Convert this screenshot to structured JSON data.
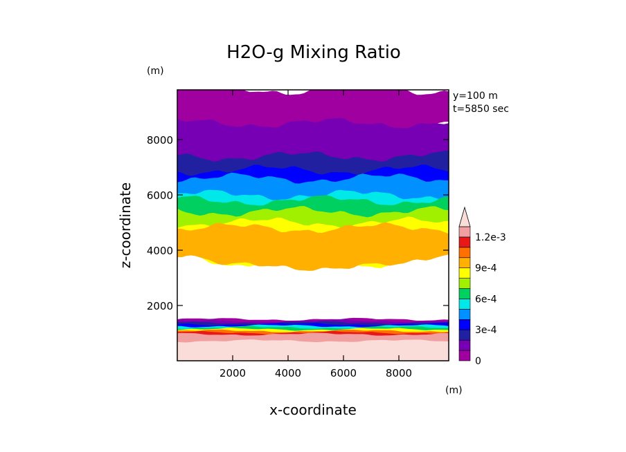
{
  "chart_data": {
    "type": "heatmap",
    "title": "H2O-g Mixing Ratio",
    "xlabel": "x-coordinate",
    "ylabel": "z-coordinate",
    "x_unit": "(m)",
    "y_unit": "(m)",
    "annotations": [
      "y=100 m",
      "t=5850 sec"
    ],
    "xlim": [
      0,
      9800
    ],
    "ylim": [
      0,
      9800
    ],
    "xticks": [
      2000,
      4000,
      6000,
      8000
    ],
    "yticks": [
      2000,
      4000,
      6000,
      8000
    ],
    "colorbar": {
      "levels": [
        0,
        0.0001,
        0.0002,
        0.0003,
        0.0004,
        0.0005,
        0.0006,
        0.0007,
        0.0008,
        0.0009,
        0.001,
        0.0011,
        0.0012
      ],
      "tick_labels": [
        "0",
        "3e-4",
        "6e-4",
        "9e-4",
        "1.2e-3"
      ],
      "tick_values": [
        0,
        0.0003,
        0.0006,
        0.0009,
        0.0012
      ],
      "extend": "max",
      "colors": [
        "#a000a0",
        "#7800b4",
        "#2020a0",
        "#0000ff",
        "#0090ff",
        "#00e8e8",
        "#00d060",
        "#a0f000",
        "#ffff00",
        "#ffb000",
        "#ff7000",
        "#e81818",
        "#f0a0a0"
      ],
      "over_color": "#fadcd8"
    },
    "layers": [
      {
        "level": 0,
        "z_bottom": 8200,
        "z_top": 9800
      },
      {
        "level": 1,
        "z_bottom": 6500,
        "z_top": 8600
      },
      {
        "level": 2,
        "z_bottom": 5800,
        "z_top": 7400
      },
      {
        "level": 3,
        "z_bottom": 5200,
        "z_top": 6900
      },
      {
        "level": 4,
        "z_bottom": 4800,
        "z_top": 6600
      },
      {
        "level": 5,
        "z_bottom": 4400,
        "z_top": 6000
      },
      {
        "level": 6,
        "z_bottom": 4200,
        "z_top": 5800
      },
      {
        "level": 7,
        "z_bottom": 3800,
        "z_top": 5400
      },
      {
        "level": 8,
        "z_bottom": 3500,
        "z_top": 5000
      },
      {
        "level": 9,
        "z_bottom": 3400,
        "z_top": 4800
      }
    ],
    "surface_layer": {
      "z_top_min": 900,
      "z_top_max": 1500,
      "bottom_value": "1.2e-3+"
    }
  }
}
